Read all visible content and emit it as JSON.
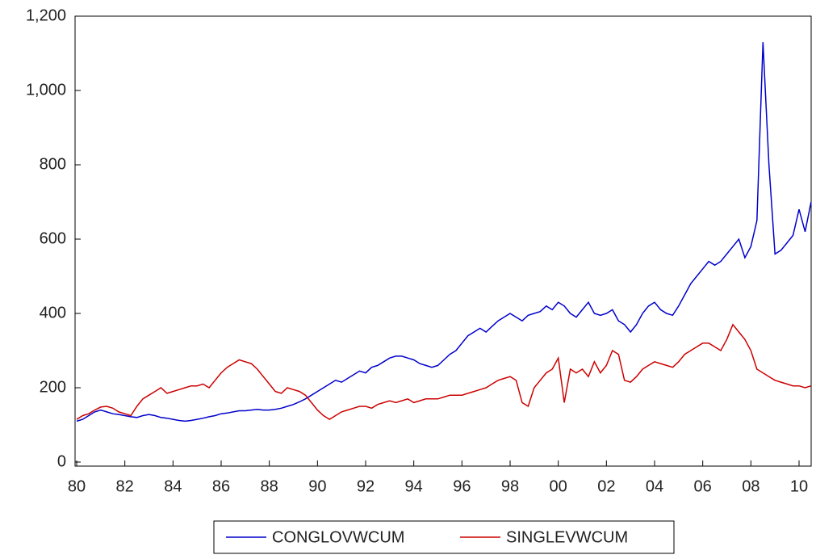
{
  "chart_data": {
    "type": "line",
    "categories": [
      "80",
      null,
      null,
      null,
      null,
      null,
      null,
      null,
      "82",
      null,
      null,
      null,
      null,
      null,
      null,
      null,
      "84",
      null,
      null,
      null,
      null,
      null,
      null,
      null,
      "86",
      null,
      null,
      null,
      null,
      null,
      null,
      null,
      "88",
      null,
      null,
      null,
      null,
      null,
      null,
      null,
      "90",
      null,
      null,
      null,
      null,
      null,
      null,
      null,
      "92",
      null,
      null,
      null,
      null,
      null,
      null,
      null,
      "94",
      null,
      null,
      null,
      null,
      null,
      null,
      null,
      "96",
      null,
      null,
      null,
      null,
      null,
      null,
      null,
      "98",
      null,
      null,
      null,
      null,
      null,
      null,
      null,
      "00",
      null,
      null,
      null,
      null,
      null,
      null,
      null,
      "02",
      null,
      null,
      null,
      null,
      null,
      null,
      null,
      "04",
      null,
      null,
      null,
      null,
      null,
      null,
      null,
      "06",
      null,
      null,
      null,
      null,
      null,
      null,
      null,
      "08",
      null,
      null,
      null,
      null,
      null,
      null,
      null,
      "10",
      null,
      null
    ],
    "series": [
      {
        "name": "CONGLOVWCUM",
        "color": "#0000cc",
        "values": [
          110,
          115,
          125,
          135,
          140,
          135,
          130,
          128,
          125,
          122,
          120,
          125,
          128,
          125,
          120,
          118,
          115,
          112,
          110,
          112,
          115,
          118,
          122,
          125,
          130,
          132,
          135,
          138,
          138,
          140,
          142,
          140,
          140,
          142,
          145,
          150,
          155,
          162,
          170,
          180,
          190,
          200,
          210,
          220,
          215,
          225,
          235,
          245,
          240,
          255,
          260,
          270,
          280,
          285,
          285,
          280,
          275,
          265,
          260,
          255,
          260,
          275,
          290,
          300,
          320,
          340,
          350,
          360,
          350,
          365,
          380,
          390,
          400,
          390,
          380,
          395,
          400,
          405,
          420,
          410,
          430,
          420,
          400,
          390,
          410,
          430,
          400,
          395,
          400,
          410,
          380,
          370,
          350,
          370,
          400,
          420,
          430,
          410,
          400,
          395,
          420,
          450,
          480,
          500,
          520,
          540,
          530,
          540,
          560,
          580,
          600,
          550,
          580,
          650,
          1130,
          800,
          560,
          570,
          590,
          610,
          680,
          620,
          700
        ]
      },
      {
        "name": "SINGLEVWCUM",
        "color": "#cc0000",
        "values": [
          115,
          125,
          130,
          140,
          148,
          150,
          145,
          135,
          130,
          125,
          150,
          170,
          180,
          190,
          200,
          185,
          190,
          195,
          200,
          205,
          205,
          210,
          200,
          220,
          240,
          255,
          265,
          275,
          270,
          265,
          250,
          230,
          210,
          190,
          185,
          200,
          195,
          190,
          180,
          160,
          140,
          125,
          115,
          125,
          135,
          140,
          145,
          150,
          150,
          145,
          155,
          160,
          165,
          160,
          165,
          170,
          160,
          165,
          170,
          170,
          170,
          175,
          180,
          180,
          180,
          185,
          190,
          195,
          200,
          210,
          220,
          225,
          230,
          220,
          160,
          150,
          200,
          220,
          240,
          250,
          280,
          160,
          250,
          240,
          250,
          230,
          270,
          240,
          260,
          300,
          290,
          220,
          215,
          230,
          250,
          260,
          270,
          265,
          260,
          255,
          270,
          290,
          300,
          310,
          320,
          320,
          310,
          300,
          330,
          370,
          350,
          330,
          300,
          250,
          240,
          230,
          220,
          215,
          210,
          205,
          205,
          200,
          205
        ]
      }
    ],
    "ylim": [
      0,
      1200
    ],
    "yticks": [
      0,
      200,
      400,
      600,
      800,
      {
        "value": 1000,
        "label": "1,000"
      },
      {
        "value": 1200,
        "label": "1,200"
      }
    ]
  }
}
